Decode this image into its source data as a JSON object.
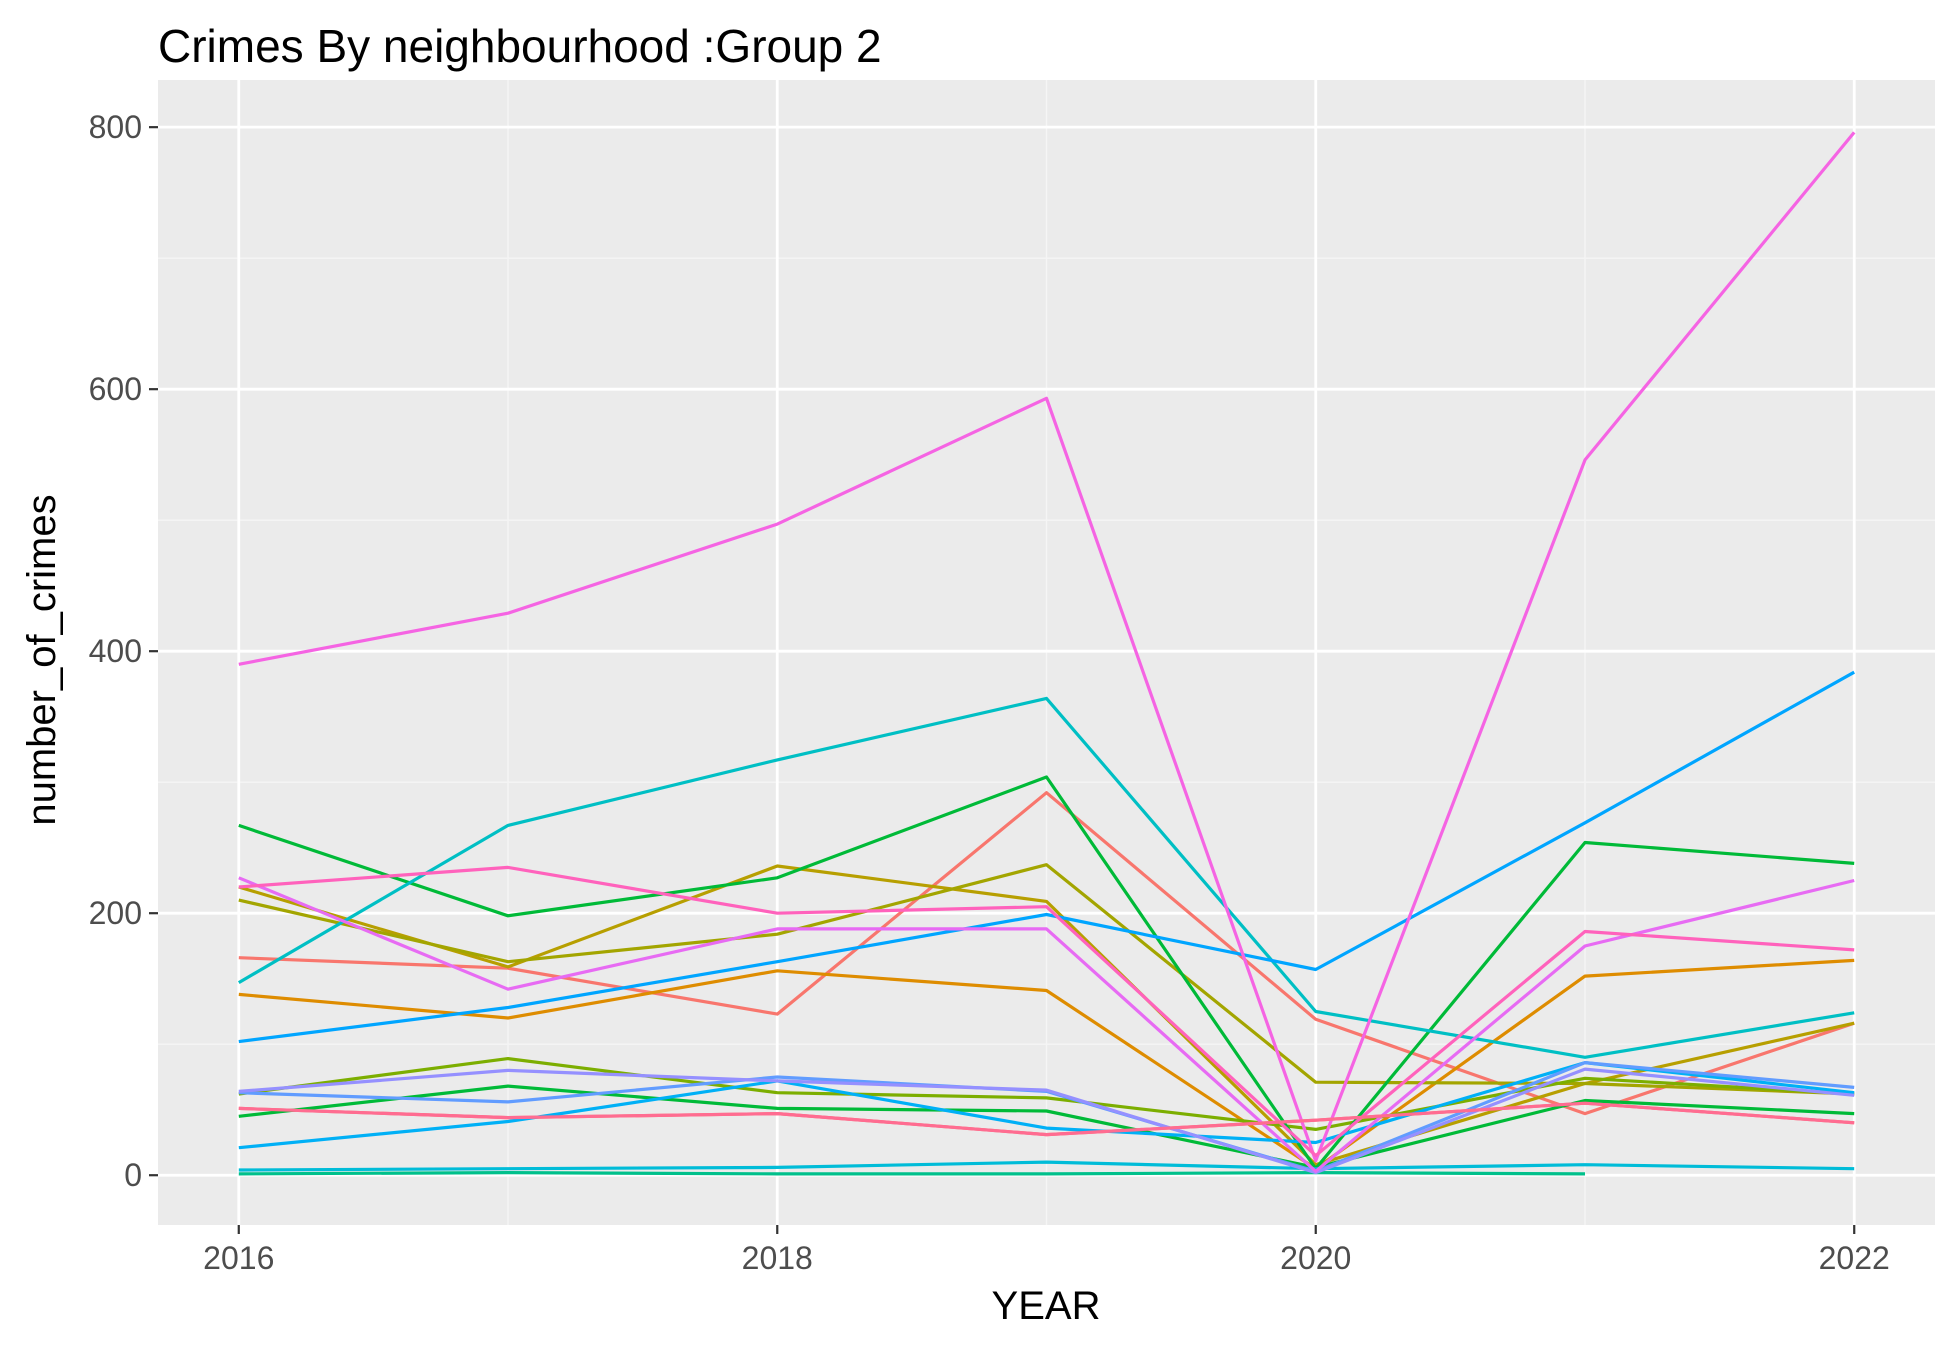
{
  "chart_data": {
    "type": "line",
    "title": "Crimes By neighbourhood :Group 2",
    "xlabel": "YEAR",
    "ylabel": "number_of_crimes",
    "xlim": [
      2015.7,
      2022.3
    ],
    "ylim": [
      -38,
      836
    ],
    "x_ticks": [
      2016,
      2018,
      2020,
      2022
    ],
    "y_ticks": [
      0,
      200,
      400,
      600,
      800
    ],
    "grid": true,
    "legend": "none",
    "x": [
      2016,
      2017,
      2018,
      2019,
      2020,
      2021,
      2022
    ],
    "series": [
      {
        "color": "#F8766D",
        "values": [
          166,
          158,
          123,
          292,
          119,
          47,
          116
        ]
      },
      {
        "color": "#F8766D",
        "values": [
          51,
          44,
          47,
          31,
          42,
          55,
          40
        ]
      },
      {
        "color": "#DE8C00",
        "values": [
          138,
          120,
          156,
          141,
          5,
          152,
          164
        ]
      },
      {
        "color": "#B79F00",
        "values": [
          220,
          159,
          236,
          209,
          8,
          70,
          116
        ]
      },
      {
        "color": "#A3A500",
        "values": [
          210,
          163,
          184,
          237,
          71,
          70,
          62
        ]
      },
      {
        "color": "#7CAE00",
        "values": [
          62,
          89,
          63,
          59,
          35,
          74,
          62
        ]
      },
      {
        "color": "#00BA38",
        "values": [
          45,
          68,
          51,
          49,
          6,
          57,
          47
        ]
      },
      {
        "color": "#00BA38",
        "values": [
          267,
          198,
          227,
          304,
          5,
          254,
          238
        ]
      },
      {
        "color": "#00C08B",
        "values": [
          1,
          2,
          1,
          1,
          2,
          1,
          null
        ]
      },
      {
        "color": "#00BFC4",
        "values": [
          147,
          267,
          317,
          364,
          125,
          90,
          124
        ]
      },
      {
        "color": "#00BCD8",
        "values": [
          4,
          5,
          6,
          10,
          5,
          8,
          5
        ]
      },
      {
        "color": "#00B0F6",
        "values": [
          21,
          41,
          72,
          36,
          25,
          86,
          63
        ]
      },
      {
        "color": "#00A5FF",
        "values": [
          102,
          128,
          163,
          199,
          157,
          269,
          384
        ]
      },
      {
        "color": "#619CFF",
        "values": [
          63,
          56,
          75,
          64,
          3,
          86,
          67
        ]
      },
      {
        "color": "#9590FF",
        "values": [
          64,
          80,
          72,
          65,
          2,
          81,
          61
        ]
      },
      {
        "color": "#E76BF3",
        "values": [
          227,
          142,
          188,
          188,
          3,
          175,
          225
        ]
      },
      {
        "color": "#F564E3",
        "values": [
          390,
          429,
          497,
          593,
          11,
          546,
          796
        ]
      },
      {
        "color": "#FF62BC",
        "values": [
          220,
          235,
          200,
          205,
          15,
          186,
          172
        ]
      },
      {
        "color": "#FF6C91",
        "values": [
          51,
          44,
          47,
          31,
          42,
          55,
          40
        ]
      }
    ]
  },
  "colors": {
    "panel_background": "#EBEBEB",
    "grid_major": "#FFFFFF",
    "grid_minor": "#F5F5F5",
    "tick_text": "#4D4D4D",
    "axis_tick": "#333333",
    "title_text": "#000000"
  }
}
